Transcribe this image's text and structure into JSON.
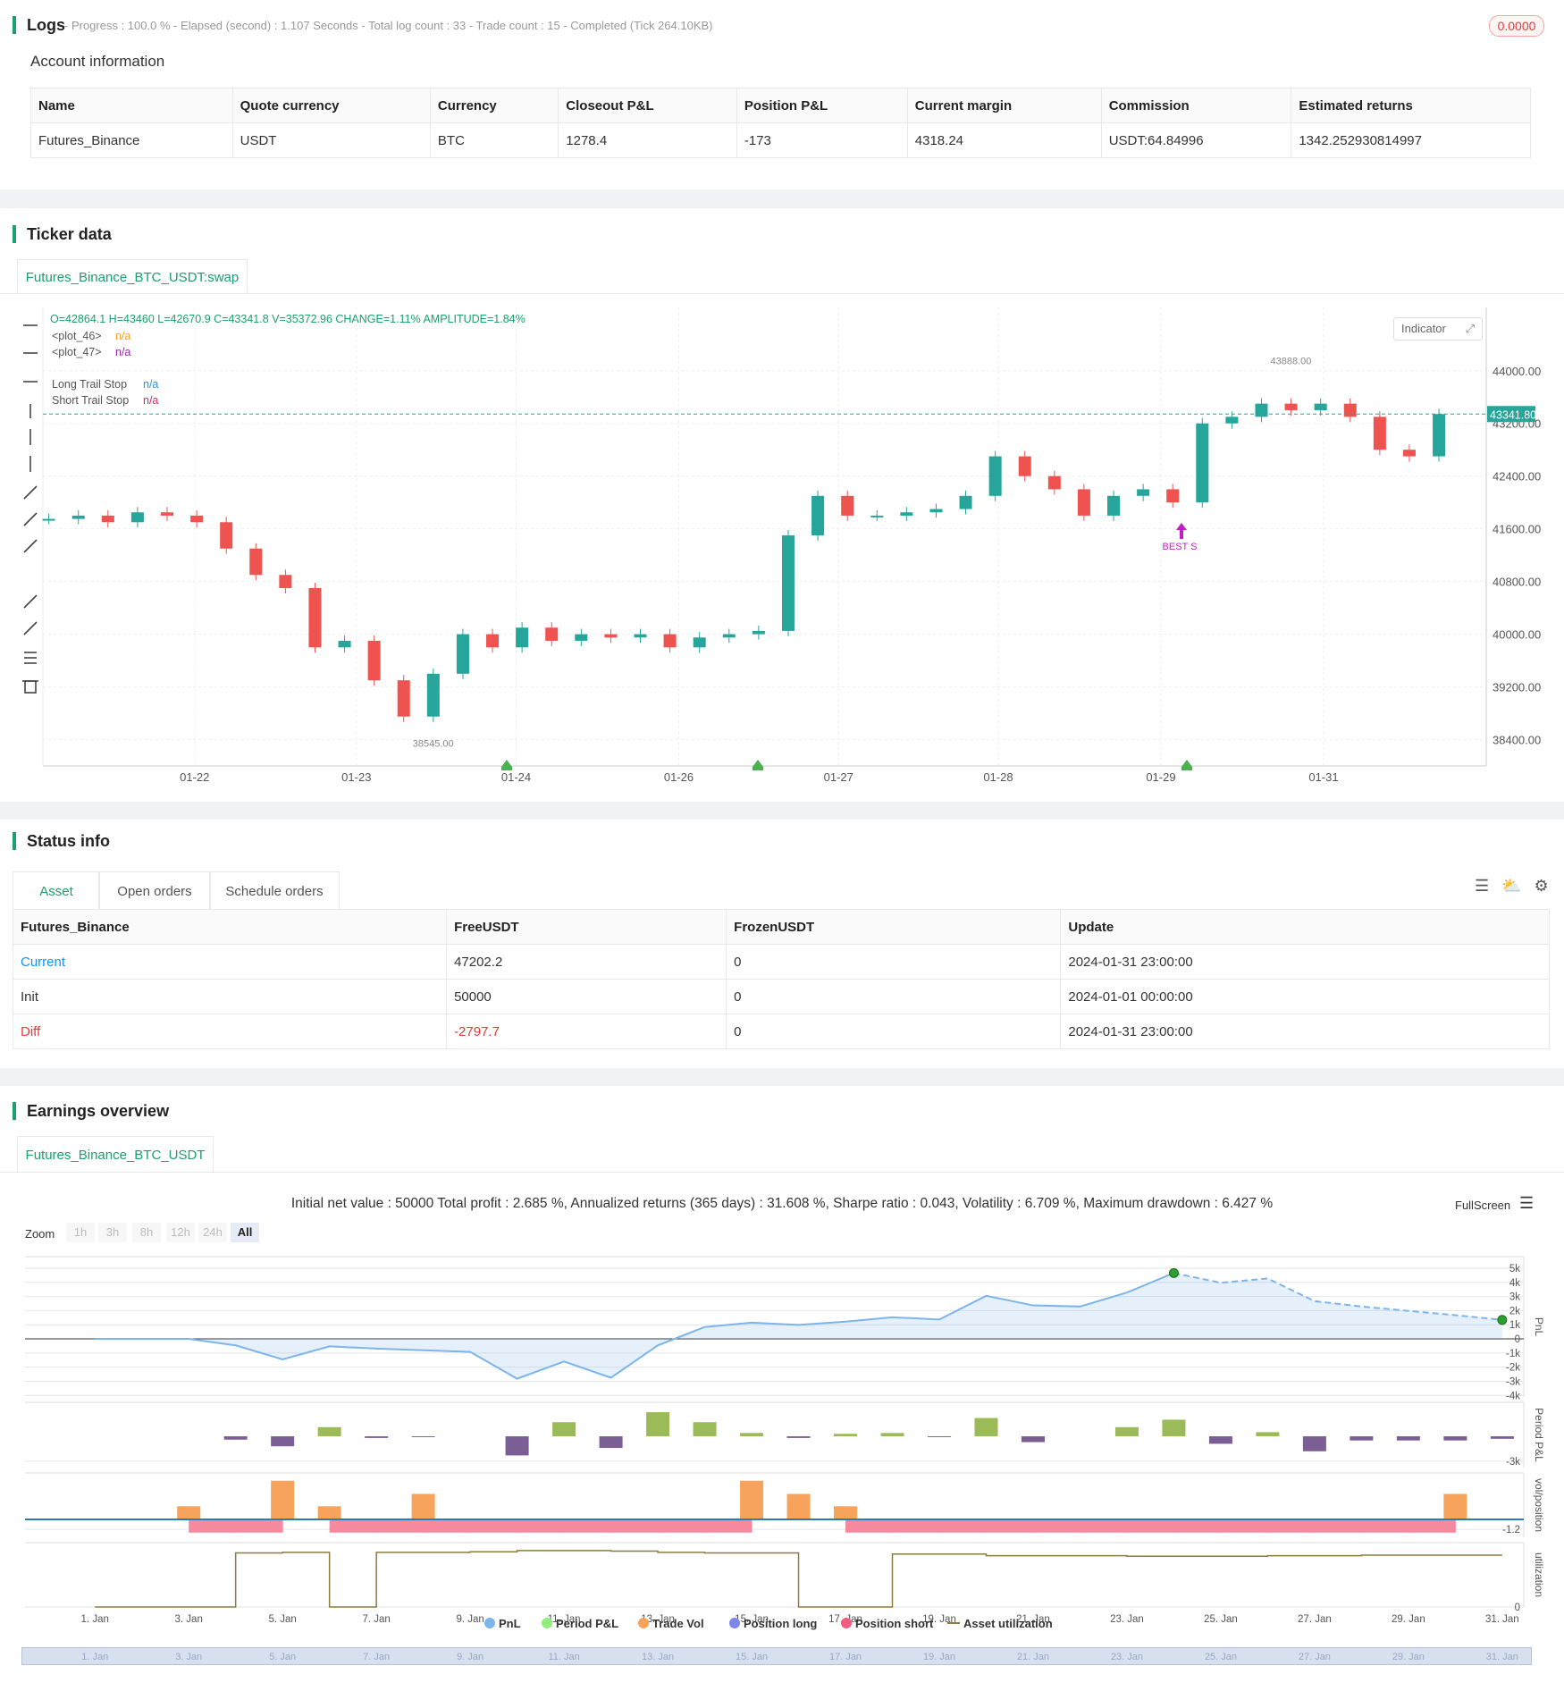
{
  "logs": {
    "title": "Logs",
    "summary": "- Progress : 100.0 % - Elapsed (second) : 1.107  Seconds - Total log count : 33 - Trade count : 15 - Completed (Tick 264.10KB)",
    "badge": "0.0000"
  },
  "account": {
    "title": "Account information",
    "columns": [
      "Name",
      "Quote currency",
      "Currency",
      "Closeout P&L",
      "Position P&L",
      "Current margin",
      "Commission",
      "Estimated returns"
    ],
    "rows": [
      [
        "Futures_Binance",
        "USDT",
        "BTC",
        "1278.4",
        "-173",
        "4318.24",
        "USDT:64.84996",
        "1342.252930814997"
      ]
    ]
  },
  "ticker": {
    "title": "Ticker data",
    "tab": "Futures_Binance_BTC_USDT:swap",
    "indicator": "Indicator",
    "ohlc": "O=42864.1 H=43460 L=42670.9 C=43341.8 V=35372.96 CHANGE=1.11% AMPLITUDE=1.84%",
    "legend": [
      {
        "name": "<plot_46>",
        "value": "n/a",
        "color": "#f5a623"
      },
      {
        "name": "<plot_47>",
        "value": "n/a",
        "color": "#9c27b0"
      },
      {
        "name": "Long Trail Stop",
        "value": "n/a",
        "color": "#2196f3"
      },
      {
        "name": "Short Trail Stop",
        "value": "n/a",
        "color": "#e91e63"
      }
    ],
    "high_label": "43888.00",
    "low_label": "38545.00",
    "last_label": "43341.80",
    "signal": "BEST S"
  },
  "status": {
    "title": "Status info",
    "tabs": [
      "Asset",
      "Open orders",
      "Schedule orders"
    ],
    "columns": [
      "Futures_Binance",
      "FreeUSDT",
      "FrozenUSDT",
      "Update"
    ],
    "rows": [
      [
        "Current",
        "47202.2",
        "0",
        "2024-01-31 23:00:00"
      ],
      [
        "Init",
        "50000",
        "0",
        "2024-01-01 00:00:00"
      ],
      [
        "Diff",
        "-2797.7",
        "0",
        "2024-01-31 23:00:00"
      ]
    ]
  },
  "earnings": {
    "title": "Earnings overview",
    "tab": "Futures_Binance_BTC_USDT",
    "summary": "Initial net value : 50000 Total profit : 2.685 %, Annualized returns (365 days) : 31.608 %, Sharpe ratio : 0.043, Volatility : 6.709 %, Maximum drawdown : 6.427 %",
    "zoom": "Zoom",
    "zoom_buttons": [
      "1h",
      "3h",
      "8h",
      "12h",
      "24h",
      "All"
    ],
    "fullscreen": "FullScreen",
    "legend": [
      {
        "name": "PnL",
        "color": "#7cb5ec"
      },
      {
        "name": "Period P&L",
        "color": "#90ed7d"
      },
      {
        "name": "Trade Vol",
        "color": "#f7a35c"
      },
      {
        "name": "Position long",
        "color": "#8085e9"
      },
      {
        "name": "Position short",
        "color": "#f15c80"
      },
      {
        "name": "Asset utilization",
        "color": "#8d7b3f"
      }
    ]
  },
  "chart_data": [
    {
      "type": "candlestick",
      "values": [
        41750,
        41800,
        41700,
        41850,
        41800,
        41700,
        41300,
        40900,
        40700,
        39800,
        39900,
        39300,
        38750,
        39400,
        40000,
        39800,
        40100,
        39900,
        40000,
        39950,
        40000,
        39800,
        39950,
        40000,
        40050,
        41500,
        42100,
        41800,
        41800,
        41850,
        41900,
        42100,
        42700,
        42400,
        42200,
        41800,
        42100,
        42200,
        42000,
        43200,
        43300,
        43500,
        43400,
        43500,
        43300,
        42800,
        42700,
        43341.8
      ],
      "up_color": "#26a69a",
      "down_color": "#ef5350",
      "xlim": [
        -0.2,
        48.6
      ],
      "xticks": [
        {
          "value": 4.93,
          "label": "01-22"
        },
        {
          "value": 10.4,
          "label": "01-23"
        },
        {
          "value": 15.8,
          "label": "01-24"
        },
        {
          "value": 21.3,
          "label": "01-26"
        },
        {
          "value": 26.7,
          "label": "01-27"
        },
        {
          "value": 32.1,
          "label": "01-28"
        },
        {
          "value": 37.6,
          "label": "01-29"
        },
        {
          "value": 43.1,
          "label": "01-31"
        }
      ],
      "ylim": [
        38000,
        44960
      ],
      "yticks": [
        {
          "value": 44000,
          "label": "44000.00"
        },
        {
          "value": 43200,
          "label": "43200.00"
        },
        {
          "value": 42400,
          "label": "42400.00"
        },
        {
          "value": 41600,
          "label": "41600.00"
        },
        {
          "value": 40800,
          "label": "40800.00"
        },
        {
          "value": 40000,
          "label": "40000.00"
        },
        {
          "value": 39200,
          "label": "39200.00"
        },
        {
          "value": 38400,
          "label": "38400.00"
        }
      ],
      "grid": true
    },
    {
      "type": "line",
      "name": "PnL",
      "color": "#7cb5ec",
      "x": [
        1,
        3,
        4,
        5,
        6,
        7,
        9,
        10,
        11,
        12,
        13,
        14,
        15,
        16,
        17,
        18,
        19,
        20,
        21,
        22,
        23,
        24,
        25,
        26,
        27,
        28,
        29,
        30,
        31
      ],
      "values": [
        0,
        0,
        -460,
        -1450,
        -530,
        -690,
        -920,
        -2820,
        -1600,
        -2750,
        -460,
        840,
        1150,
        990,
        1220,
        1530,
        1370,
        3050,
        2370,
        2290,
        3280,
        4660,
        3970,
        4270,
        2670,
        2290,
        1980,
        1680,
        1342
      ],
      "dashed_from": 24,
      "xlim": [
        -0.49,
        31.46
      ],
      "xticks": [
        {
          "value": 1,
          "label": "1. Jan"
        },
        {
          "value": 3,
          "label": "3. Jan"
        },
        {
          "value": 5,
          "label": "5. Jan"
        },
        {
          "value": 7,
          "label": "7. Jan"
        },
        {
          "value": 9,
          "label": "9. Jan"
        },
        {
          "value": 11,
          "label": "11. Jan"
        },
        {
          "value": 13,
          "label": "13. Jan"
        },
        {
          "value": 15,
          "label": "15. Jan"
        },
        {
          "value": 17,
          "label": "17. Jan"
        },
        {
          "value": 19,
          "label": "19. Jan"
        },
        {
          "value": 21,
          "label": "21. Jan"
        },
        {
          "value": 23,
          "label": "23. Jan"
        },
        {
          "value": 25,
          "label": "25. Jan"
        },
        {
          "value": 27,
          "label": "27. Jan"
        },
        {
          "value": 29,
          "label": "29. Jan"
        },
        {
          "value": 31,
          "label": "31. Jan"
        }
      ],
      "ylim": [
        -4110,
        5820
      ],
      "yticks": [
        {
          "value": 5000,
          "label": "5k"
        },
        {
          "value": 4000,
          "label": "4k"
        },
        {
          "value": 3000,
          "label": "3k"
        },
        {
          "value": 2000,
          "label": "2k"
        },
        {
          "value": 1000,
          "label": "1k"
        },
        0,
        {
          "value": -1000,
          "label": "-1k"
        },
        {
          "value": -2000,
          "label": "-2k"
        },
        {
          "value": -3000,
          "label": "-3k"
        },
        {
          "value": -4000,
          "label": "-4k"
        }
      ],
      "y_label": "PnL"
    },
    {
      "type": "bar",
      "name": "Period P&L",
      "pos_color": "#9bbb59",
      "neg_color": "#7b5e94",
      "x": [
        4,
        5,
        6,
        7,
        8,
        10,
        11,
        12,
        13,
        14,
        15,
        16,
        17,
        18,
        19,
        20,
        21,
        23,
        24,
        25,
        26,
        27,
        28,
        29,
        30,
        31
      ],
      "values": [
        -400,
        -1200,
        1100,
        -200,
        -100,
        -2300,
        1700,
        -1400,
        2900,
        1700,
        400,
        -200,
        300,
        400,
        -100,
        2200,
        -700,
        1100,
        2000,
        -900,
        500,
        -1800,
        -500,
        -500,
        -500,
        -300
      ],
      "xlim": [
        -0.49,
        31.46
      ],
      "ylim": [
        -3760,
        4090
      ],
      "yticks": [
        {
          "value": -3000,
          "label": "-3k"
        }
      ],
      "y_label": "Period P&L"
    },
    {
      "type": "volume",
      "name": "Trade Vol",
      "color": "#f7a35c",
      "short_color": "#f7899f",
      "x": [
        3,
        5,
        6,
        8,
        15,
        16,
        17,
        30
      ],
      "values": [
        1.6,
        4.7,
        1.6,
        3.1,
        4.7,
        3.1,
        1.6,
        3.1
      ],
      "short_x": [
        3,
        4,
        6,
        7,
        8,
        9,
        10,
        11,
        12,
        13,
        14,
        17,
        18,
        19,
        20,
        21,
        22,
        23,
        24,
        25,
        26,
        27,
        28,
        29
      ],
      "short_values": [
        -1.6,
        -1.6,
        -1.6,
        -1.6,
        -1.6,
        -1.6,
        -1.6,
        -1.6,
        -1.6,
        -1.6,
        -1.6,
        -1.6,
        -1.6,
        -1.6,
        -1.6,
        -1.6,
        -1.6,
        -1.6,
        -1.6,
        -1.6,
        -1.6,
        -1.6,
        -1.6,
        -1.6
      ],
      "xlim": [
        -0.49,
        31.46
      ],
      "ylim": [
        -2.17,
        5.65
      ],
      "yticks": [
        -1.2
      ],
      "y_label": "vol/position"
    },
    {
      "type": "step",
      "name": "Asset utilization",
      "color": "#8d7b3f",
      "x": [
        1,
        2,
        3,
        4,
        5,
        6,
        7,
        8,
        9,
        10,
        11,
        12,
        13,
        14,
        15,
        16,
        17,
        18,
        19,
        20,
        21,
        22,
        23,
        24,
        25,
        26,
        27,
        28,
        29,
        30,
        31
      ],
      "values": [
        0,
        0,
        0,
        0.95,
        0.96,
        0,
        0.96,
        0.96,
        0.97,
        0.99,
        0.99,
        0.98,
        0.96,
        0.95,
        0.95,
        0,
        0,
        0.93,
        0.93,
        0.9,
        0.9,
        0.9,
        0.89,
        0.89,
        0.89,
        0.9,
        0.9,
        0.91,
        0.91,
        0.91,
        0.91
      ],
      "xlim": [
        -0.49,
        31.46
      ],
      "ylim": [
        0,
        1.13
      ],
      "yticks": [
        0
      ],
      "y_label": "utilization"
    }
  ]
}
